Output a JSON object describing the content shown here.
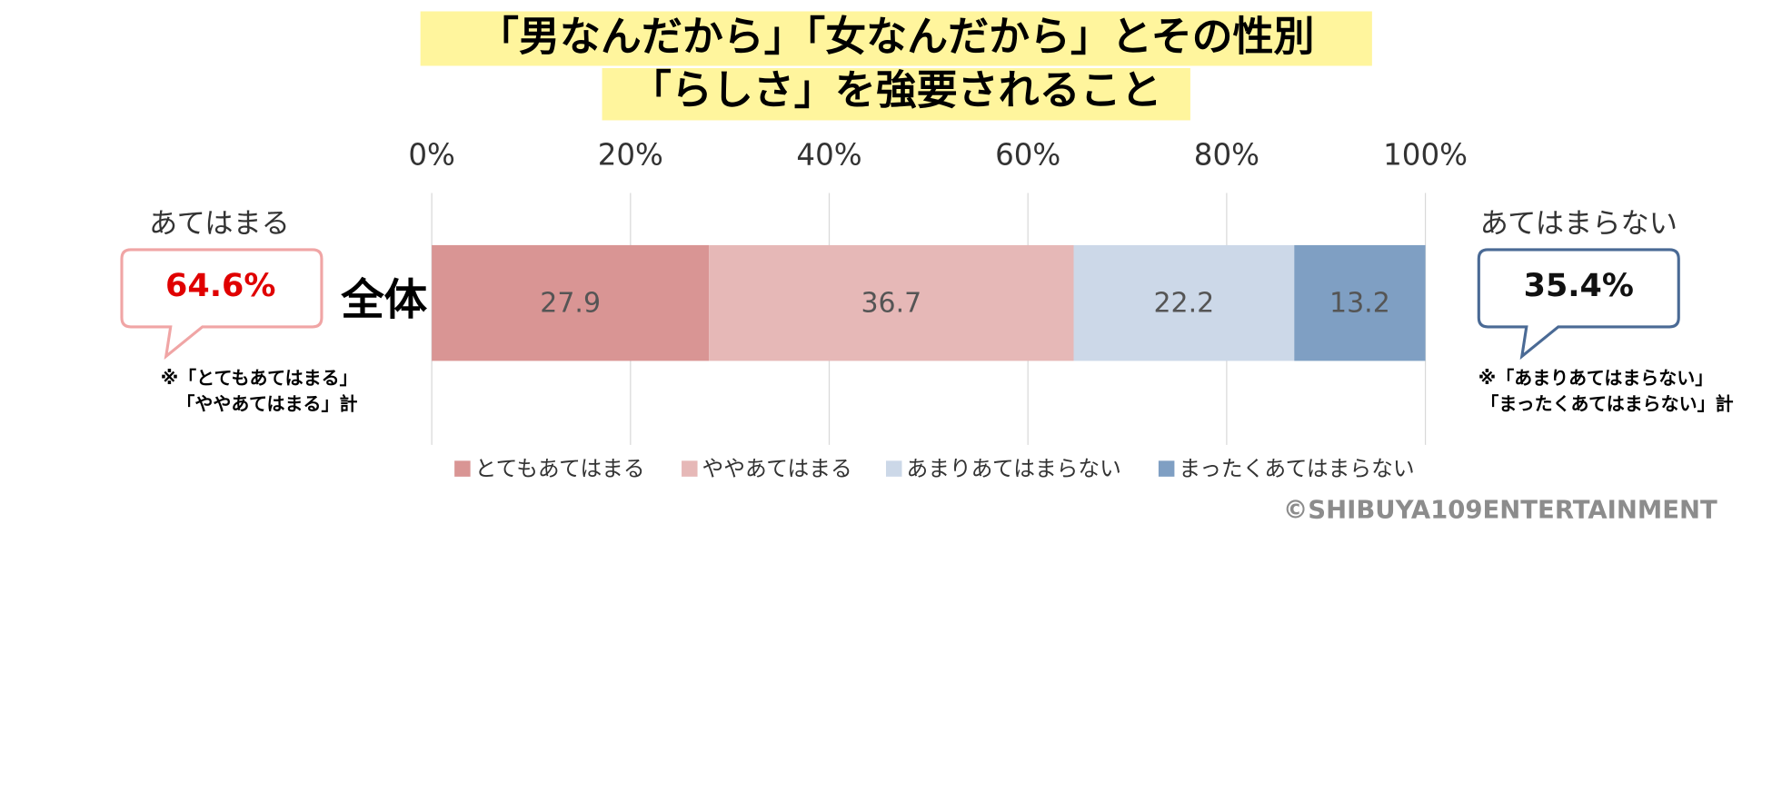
{
  "chart_data": {
    "type": "stacked-bar-horizontal",
    "title_lines": [
      "「男なんだから」「女なんだから」とその性別",
      "「らしさ」を強要されること"
    ],
    "categories": [
      "全体"
    ],
    "series": [
      {
        "name": "とてもあてはまる",
        "color": "#d99594",
        "values": [
          27.9
        ]
      },
      {
        "name": "ややあてはまる",
        "color": "#e6b8b7",
        "values": [
          36.7
        ]
      },
      {
        "name": "あまりあてはまらない",
        "color": "#ccd8e8",
        "values": [
          22.2
        ]
      },
      {
        "name": "まったくあてはまらない",
        "color": "#7f9fc3",
        "values": [
          13.2
        ]
      }
    ],
    "xlim": [
      0,
      100
    ],
    "xticks": [
      {
        "value": 0,
        "label": "0%"
      },
      {
        "value": 20,
        "label": "20%"
      },
      {
        "value": 40,
        "label": "40%"
      },
      {
        "value": 60,
        "label": "60%"
      },
      {
        "value": 80,
        "label": "80%"
      },
      {
        "value": 100,
        "label": "100%"
      }
    ],
    "grid": true,
    "legend": "bottom",
    "annotations": {
      "left": {
        "label": "あてはまる",
        "value": "64.6%",
        "notes": [
          "※「とてもあてはまる」",
          "「ややあてはまる」計"
        ]
      },
      "right": {
        "label": "あてはまらない",
        "value": "35.4%",
        "notes": [
          "※「あまりあてはまらない」",
          "「まったくあてはまらない」計"
        ]
      }
    },
    "copyright": "©SHIBUYA109ENTERTAINMENT"
  }
}
